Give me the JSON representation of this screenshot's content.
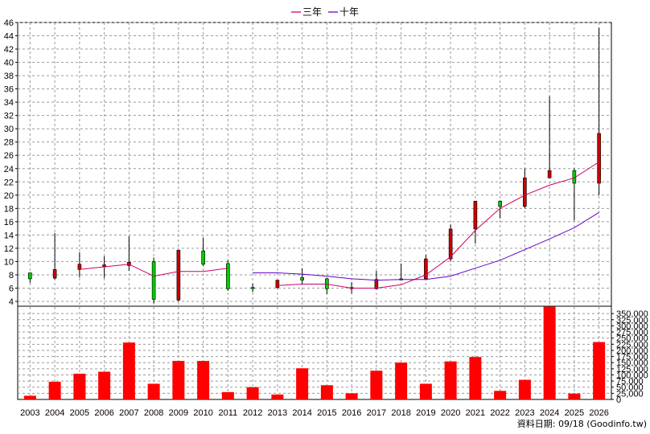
{
  "chart_data": {
    "type": "candlestick",
    "legend": [
      {
        "name": "三年",
        "color": "#cc0066"
      },
      {
        "name": "十年",
        "color": "#6600cc"
      }
    ],
    "price_axis": {
      "ylim": [
        4,
        46
      ],
      "ticks": [
        4,
        6,
        8,
        10,
        12,
        14,
        16,
        18,
        20,
        22,
        24,
        26,
        28,
        30,
        32,
        34,
        36,
        38,
        40,
        42,
        44,
        46
      ]
    },
    "volume_axis": {
      "ylim": [
        0,
        380000
      ],
      "ticks": [
        0,
        25000,
        50000,
        75000,
        100000,
        125000,
        150000,
        175000,
        200000,
        225000,
        250000,
        275000,
        300000,
        325000,
        350000
      ],
      "tick_labels": [
        "0",
        "25,000",
        "50,000",
        "75,000",
        "100,000",
        "125,000",
        "150,000",
        "175,000",
        "200,000",
        "225,000",
        "250,000",
        "275,000",
        "300,000",
        "325,000",
        "350,000"
      ]
    },
    "years": [
      "2003",
      "2004",
      "2005",
      "2006",
      "2007",
      "2008",
      "2009",
      "2010",
      "2011",
      "2012",
      "2013",
      "2014",
      "2015",
      "2016",
      "2017",
      "2018",
      "2019",
      "2020",
      "2021",
      "2022",
      "2023",
      "2024",
      "2025",
      "2026"
    ],
    "candles": [
      {
        "open": 7.4,
        "close": 8.3,
        "high": 8.3,
        "low": 6.8
      },
      {
        "open": 8.8,
        "close": 7.5,
        "high": 14.3,
        "low": 7.3
      },
      {
        "open": 9.6,
        "close": 8.8,
        "high": 11.4,
        "low": 7.6
      },
      {
        "open": 9.5,
        "close": 9.2,
        "high": 10.8,
        "low": 7.5
      },
      {
        "open": 9.9,
        "close": 9.4,
        "high": 13.8,
        "low": 8.6
      },
      {
        "open": 4.3,
        "close": 10.0,
        "high": 10.6,
        "low": 3.7
      },
      {
        "open": 11.7,
        "close": 4.2,
        "high": 11.8,
        "low": 4.0
      },
      {
        "open": 9.6,
        "close": 11.6,
        "high": 13.6,
        "low": 9.3
      },
      {
        "open": 5.9,
        "close": 9.7,
        "high": 10.2,
        "low": 5.6
      },
      {
        "open": 6.1,
        "close": 6.1,
        "high": 6.7,
        "low": 5.4
      },
      {
        "open": 7.2,
        "close": 6.1,
        "high": 7.2,
        "low": 5.9
      },
      {
        "open": 7.2,
        "close": 7.6,
        "high": 9.0,
        "low": 6.6
      },
      {
        "open": 5.9,
        "close": 7.4,
        "high": 7.6,
        "low": 5.1
      },
      {
        "open": 6.1,
        "close": 6.1,
        "high": 6.9,
        "low": 5.2
      },
      {
        "open": 7.3,
        "close": 5.9,
        "high": 8.6,
        "low": 5.8
      },
      {
        "open": 7.4,
        "close": 7.4,
        "high": 9.7,
        "low": 7.2
      },
      {
        "open": 10.4,
        "close": 7.4,
        "high": 11.0,
        "low": 7.2
      },
      {
        "open": 14.9,
        "close": 10.4,
        "high": 15.6,
        "low": 10.0
      },
      {
        "open": 19.1,
        "close": 14.9,
        "high": 19.1,
        "low": 12.7
      },
      {
        "open": 18.3,
        "close": 19.1,
        "high": 19.2,
        "low": 16.5
      },
      {
        "open": 22.6,
        "close": 18.3,
        "high": 24.0,
        "low": 18.0
      },
      {
        "open": 23.7,
        "close": 22.6,
        "high": 34.9,
        "low": 22.6
      },
      {
        "open": 21.8,
        "close": 23.7,
        "high": 24.0,
        "low": 16.2
      },
      {
        "open": 29.3,
        "close": 21.8,
        "high": 45.2,
        "low": 20.0
      }
    ],
    "series": [
      {
        "name": "三年",
        "values": [
          null,
          null,
          8.8,
          9.2,
          9.6,
          7.8,
          8.5,
          8.5,
          9.0,
          null,
          6.4,
          6.6,
          6.6,
          6.0,
          6.0,
          6.5,
          8.0,
          10.7,
          14.7,
          18.0,
          20.0,
          21.5,
          22.6,
          25.0
        ]
      },
      {
        "name": "十年",
        "values": [
          null,
          null,
          null,
          null,
          null,
          null,
          null,
          null,
          null,
          8.3,
          8.3,
          8.1,
          7.8,
          7.4,
          7.2,
          7.3,
          7.3,
          7.8,
          9.0,
          10.2,
          11.8,
          13.4,
          15.1,
          17.4
        ]
      }
    ],
    "volumes": [
      15000,
      72000,
      105000,
      113000,
      232000,
      64000,
      157000,
      157000,
      30000,
      50000,
      20000,
      127000,
      58000,
      25000,
      117000,
      150000,
      64000,
      155000,
      173000,
      35000,
      80000,
      378000,
      24000,
      234000
    ],
    "up_color": "#00cc00",
    "down_color": "#cc0000",
    "volume_color": "#ff0000",
    "grid": true
  },
  "footer": "資料日期: 09/18  (Goodinfo.tw)"
}
